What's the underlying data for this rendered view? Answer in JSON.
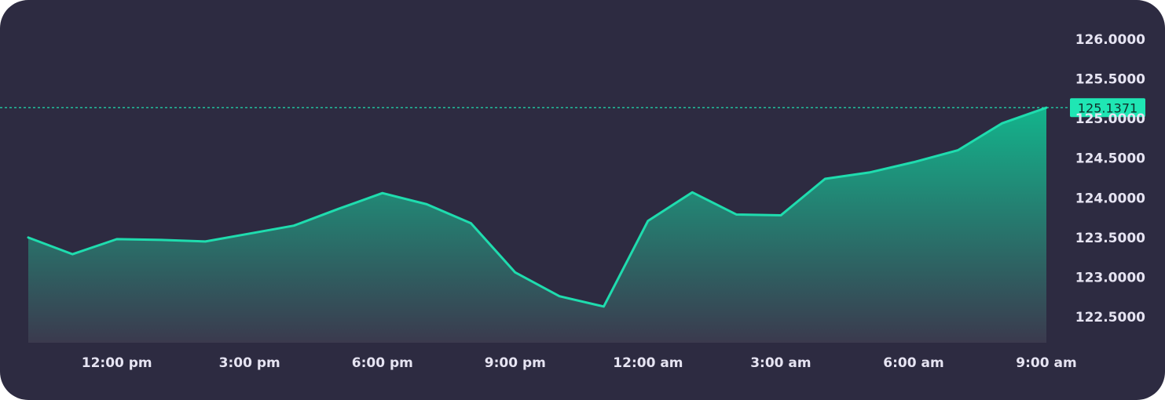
{
  "chart_data": {
    "type": "area",
    "x": [
      "10:00 am",
      "11:00 am",
      "12:00 pm",
      "1:00 pm",
      "2:00 pm",
      "3:00 pm",
      "4:00 pm",
      "5:00 pm",
      "6:00 pm",
      "7:00 pm",
      "8:00 pm",
      "9:00 pm",
      "10:00 pm",
      "11:00 pm",
      "12:00 am",
      "1:00 am",
      "2:00 am",
      "3:00 am",
      "4:00 am",
      "5:00 am",
      "6:00 am",
      "7:00 am",
      "8:00 am",
      "9:00 am"
    ],
    "values": [
      123.5,
      123.29,
      123.48,
      123.47,
      123.45,
      123.55,
      123.65,
      123.86,
      124.06,
      123.92,
      123.68,
      123.06,
      122.76,
      122.63,
      123.71,
      124.07,
      123.79,
      123.78,
      124.24,
      124.32,
      124.45,
      124.6,
      124.94,
      125.1371
    ],
    "x_tick_labels": [
      "12:00 pm",
      "3:00 pm",
      "6:00 pm",
      "9:00 pm",
      "12:00 am",
      "3:00 am",
      "6:00 am",
      "9:00 am"
    ],
    "x_tick_indices": [
      2,
      5,
      8,
      11,
      14,
      17,
      20,
      23
    ],
    "y_ticks": [
      122.5,
      123.0,
      123.5,
      124.0,
      124.5,
      125.0,
      125.5,
      126.0
    ],
    "y_tick_labels": [
      "122.5000",
      "123.0000",
      "123.5000",
      "124.0000",
      "124.5000",
      "125.0000",
      "125.5000",
      "126.0000"
    ],
    "ylim": [
      122.18,
      126.22
    ],
    "current_value": 125.1371,
    "current_value_label": "125.1371",
    "title": "",
    "xlabel": "",
    "ylabel": "",
    "grid": false,
    "legend": "none",
    "axis_position": "right",
    "colors": {
      "background": "#2d2b41",
      "line": "#1fdcae",
      "fill_top": "#13b48c",
      "fill_bottom": "#3b3a4e",
      "tick_text": "#e6e4f2",
      "price_tag": "#1fe6b4",
      "price_tag_text": "#0f2f2a"
    }
  }
}
